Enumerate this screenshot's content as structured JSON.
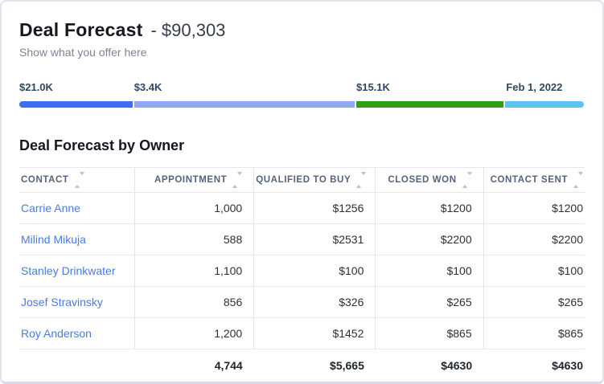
{
  "header": {
    "title": "Deal Forecast",
    "amount": "- $90,303",
    "subtitle": "Show what you offer here"
  },
  "funnel": {
    "segments": [
      {
        "name": "appointment",
        "label": "$21.0K",
        "color": "#3D6EEE",
        "width_pct": 20.1
      },
      {
        "name": "qualified-to-buy",
        "label": "$3.4K",
        "color": "#8FA9F5",
        "width_pct": 39.0
      },
      {
        "name": "closed-won",
        "label": "$15.1K",
        "color": "#2FA014",
        "width_pct": 26.0
      },
      {
        "name": "close-date",
        "label": "Feb 1, 2022",
        "color": "#5BC4F1",
        "width_pct": 13.9
      }
    ]
  },
  "section": {
    "title": "Deal Forecast by Owner"
  },
  "table": {
    "columns": [
      {
        "label": "Contact",
        "align": "left"
      },
      {
        "label": "Appointment",
        "align": "right"
      },
      {
        "label": "Qualified to Buy",
        "align": "right"
      },
      {
        "label": "Closed Won",
        "align": "right"
      },
      {
        "label": "Contact Sent",
        "align": "right"
      }
    ],
    "rows": [
      {
        "contact": "Carrie Anne",
        "appointment": "1,000",
        "qualified_to_buy": "$1256",
        "closed_won": "$1200",
        "contact_sent": "$1200"
      },
      {
        "contact": "Milind Mikuja",
        "appointment": "588",
        "qualified_to_buy": "$2531",
        "closed_won": "$2200",
        "contact_sent": "$2200"
      },
      {
        "contact": "Stanley Drinkwater",
        "appointment": "1,100",
        "qualified_to_buy": "$100",
        "closed_won": "$100",
        "contact_sent": "$100"
      },
      {
        "contact": "Josef Stravinsky",
        "appointment": "856",
        "qualified_to_buy": "$326",
        "closed_won": "$265",
        "contact_sent": "$265"
      },
      {
        "contact": "Roy Anderson",
        "appointment": "1,200",
        "qualified_to_buy": "$1452",
        "closed_won": "$865",
        "contact_sent": "$865"
      }
    ],
    "totals": {
      "appointment": "4,744",
      "qualified_to_buy": "$5,665",
      "closed_won": "$4630",
      "contact_sent": "$4630"
    }
  },
  "colors": {
    "link": "#4a7be5",
    "label_navy": "#33475b",
    "border": "#e2e3ef"
  }
}
